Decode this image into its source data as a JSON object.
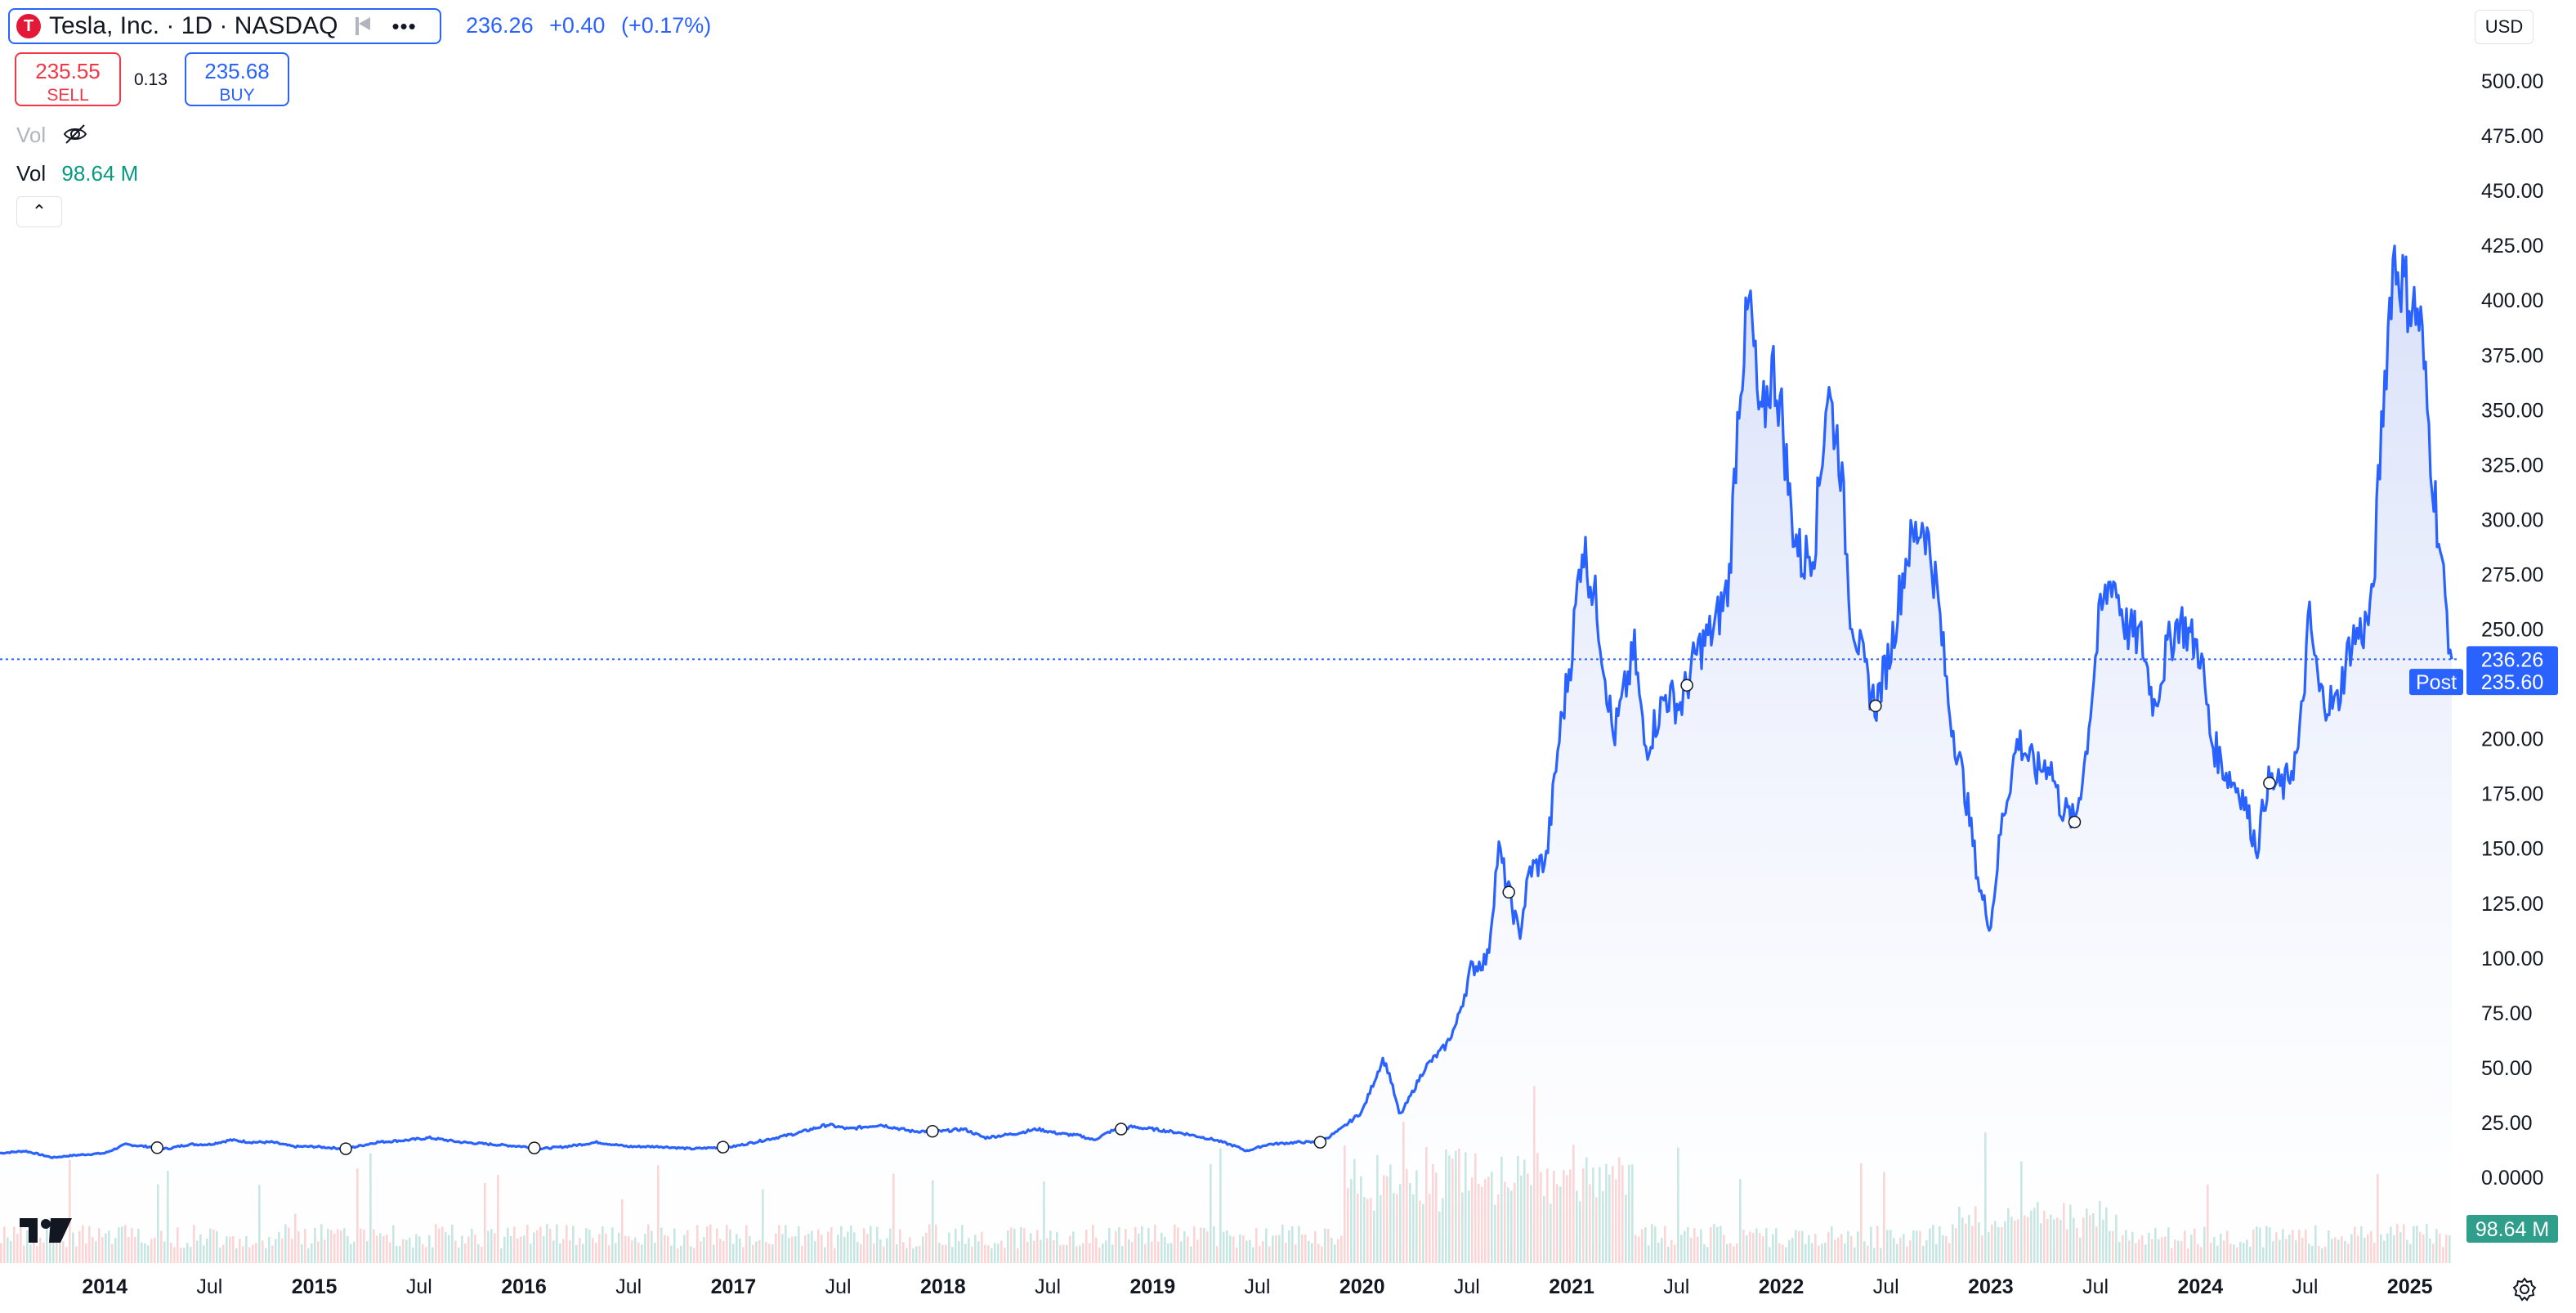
{
  "header": {
    "symbol_logo": "T",
    "symbol_title": "Tesla, Inc. · 1D · NASDAQ",
    "last_price": "236.26",
    "change": "+0.40",
    "change_pct": "(+0.17%)",
    "flag_icon": "flag-icon",
    "more_icon": "more-icon"
  },
  "trade": {
    "sell_price": "235.55",
    "sell_label": "SELL",
    "spread": "0.13",
    "buy_price": "235.68",
    "buy_label": "BUY"
  },
  "volume_legend": {
    "hidden_label": "Vol",
    "label": "Vol",
    "value": "98.64 M"
  },
  "currency": "USD",
  "price_badges": {
    "last": "236.26",
    "post": "235.60",
    "post_tag": "Post",
    "volume": "98.64 M"
  },
  "colors": {
    "line": "#2962ff",
    "area_top": "#dbe3fb",
    "vol_up": "#80c9bc",
    "vol_down": "#f5a0a0",
    "sell": "#f23645",
    "buy": "#2962ff",
    "vol_value": "#089981"
  },
  "chart_data": {
    "type": "area",
    "title": "Tesla, Inc. · 1D · NASDAQ",
    "xlabel": "",
    "ylabel": "",
    "ylim": [
      -20,
      525
    ],
    "y_ticks": [
      "500.00",
      "475.00",
      "450.00",
      "425.00",
      "400.00",
      "375.00",
      "350.00",
      "325.00",
      "300.00",
      "275.00",
      "250.00",
      "225.00",
      "200.00",
      "175.00",
      "150.00",
      "125.00",
      "100.00",
      "75.00",
      "50.00",
      "25.00",
      "0.0000"
    ],
    "x_ticks": [
      {
        "label": "2014",
        "t": 2014.0,
        "bold": true
      },
      {
        "label": "Jul",
        "t": 2014.5,
        "bold": false
      },
      {
        "label": "2015",
        "t": 2015.0,
        "bold": true
      },
      {
        "label": "Jul",
        "t": 2015.5,
        "bold": false
      },
      {
        "label": "2016",
        "t": 2016.0,
        "bold": true
      },
      {
        "label": "Jul",
        "t": 2016.5,
        "bold": false
      },
      {
        "label": "2017",
        "t": 2017.0,
        "bold": true
      },
      {
        "label": "Jul",
        "t": 2017.5,
        "bold": false
      },
      {
        "label": "2018",
        "t": 2018.0,
        "bold": true
      },
      {
        "label": "Jul",
        "t": 2018.5,
        "bold": false
      },
      {
        "label": "2019",
        "t": 2019.0,
        "bold": true
      },
      {
        "label": "Jul",
        "t": 2019.5,
        "bold": false
      },
      {
        "label": "2020",
        "t": 2020.0,
        "bold": true
      },
      {
        "label": "Jul",
        "t": 2020.5,
        "bold": false
      },
      {
        "label": "2021",
        "t": 2021.0,
        "bold": true
      },
      {
        "label": "Jul",
        "t": 2021.5,
        "bold": false
      },
      {
        "label": "2022",
        "t": 2022.0,
        "bold": true
      },
      {
        "label": "Jul",
        "t": 2022.5,
        "bold": false
      },
      {
        "label": "2023",
        "t": 2023.0,
        "bold": true
      },
      {
        "label": "Jul",
        "t": 2023.5,
        "bold": false
      },
      {
        "label": "2024",
        "t": 2024.0,
        "bold": true
      },
      {
        "label": "Jul",
        "t": 2024.5,
        "bold": false
      },
      {
        "label": "2025",
        "t": 2025.0,
        "bold": true
      }
    ],
    "series": [
      {
        "values": [
          [
            2013.5,
            11
          ],
          [
            2013.62,
            12
          ],
          [
            2013.75,
            9
          ],
          [
            2013.85,
            10
          ],
          [
            2014.0,
            11
          ],
          [
            2014.1,
            15
          ],
          [
            2014.2,
            14
          ],
          [
            2014.3,
            13
          ],
          [
            2014.4,
            15
          ],
          [
            2014.5,
            15
          ],
          [
            2014.6,
            17
          ],
          [
            2014.7,
            16
          ],
          [
            2014.8,
            16
          ],
          [
            2014.9,
            14
          ],
          [
            2015.0,
            14
          ],
          [
            2015.15,
            13
          ],
          [
            2015.3,
            16
          ],
          [
            2015.45,
            17
          ],
          [
            2015.55,
            18
          ],
          [
            2015.7,
            16
          ],
          [
            2015.85,
            15
          ],
          [
            2016.0,
            14
          ],
          [
            2016.08,
            13
          ],
          [
            2016.2,
            14
          ],
          [
            2016.35,
            16
          ],
          [
            2016.5,
            14
          ],
          [
            2016.65,
            14
          ],
          [
            2016.8,
            13
          ],
          [
            2017.0,
            14
          ],
          [
            2017.15,
            17
          ],
          [
            2017.3,
            20
          ],
          [
            2017.45,
            24
          ],
          [
            2017.55,
            22
          ],
          [
            2017.7,
            24
          ],
          [
            2017.85,
            21
          ],
          [
            2018.0,
            21
          ],
          [
            2018.1,
            22
          ],
          [
            2018.2,
            18
          ],
          [
            2018.35,
            20
          ],
          [
            2018.45,
            22
          ],
          [
            2018.55,
            20
          ],
          [
            2018.65,
            19
          ],
          [
            2018.72,
            17
          ],
          [
            2018.8,
            21
          ],
          [
            2018.9,
            23
          ],
          [
            2019.0,
            22
          ],
          [
            2019.15,
            20
          ],
          [
            2019.3,
            17
          ],
          [
            2019.4,
            14
          ],
          [
            2019.45,
            12
          ],
          [
            2019.55,
            15
          ],
          [
            2019.7,
            16
          ],
          [
            2019.8,
            16
          ],
          [
            2019.9,
            22
          ],
          [
            2020.0,
            30
          ],
          [
            2020.1,
            54
          ],
          [
            2020.13,
            47
          ],
          [
            2020.18,
            28
          ],
          [
            2020.22,
            35
          ],
          [
            2020.3,
            50
          ],
          [
            2020.4,
            60
          ],
          [
            2020.45,
            70
          ],
          [
            2020.52,
            95
          ],
          [
            2020.6,
            100
          ],
          [
            2020.65,
            150
          ],
          [
            2020.7,
            130
          ],
          [
            2020.75,
            110
          ],
          [
            2020.8,
            140
          ],
          [
            2020.88,
            145
          ],
          [
            2020.94,
            200
          ],
          [
            2021.0,
            240
          ],
          [
            2021.05,
            290
          ],
          [
            2021.12,
            260
          ],
          [
            2021.2,
            200
          ],
          [
            2021.3,
            240
          ],
          [
            2021.35,
            195
          ],
          [
            2021.45,
            220
          ],
          [
            2021.52,
            215
          ],
          [
            2021.6,
            240
          ],
          [
            2021.68,
            250
          ],
          [
            2021.75,
            270
          ],
          [
            2021.8,
            360
          ],
          [
            2021.85,
            400
          ],
          [
            2021.9,
            340
          ],
          [
            2021.96,
            370
          ],
          [
            2022.0,
            350
          ],
          [
            2022.05,
            300
          ],
          [
            2022.1,
            280
          ],
          [
            2022.16,
            290
          ],
          [
            2022.22,
            360
          ],
          [
            2022.28,
            330
          ],
          [
            2022.33,
            260
          ],
          [
            2022.4,
            230
          ],
          [
            2022.45,
            215
          ],
          [
            2022.52,
            240
          ],
          [
            2022.6,
            285
          ],
          [
            2022.68,
            300
          ],
          [
            2022.74,
            270
          ],
          [
            2022.8,
            215
          ],
          [
            2022.88,
            175
          ],
          [
            2022.95,
            130
          ],
          [
            2023.0,
            115
          ],
          [
            2023.05,
            160
          ],
          [
            2023.13,
            200
          ],
          [
            2023.22,
            185
          ],
          [
            2023.28,
            190
          ],
          [
            2023.33,
            170
          ],
          [
            2023.4,
            162
          ],
          [
            2023.45,
            190
          ],
          [
            2023.52,
            255
          ],
          [
            2023.58,
            275
          ],
          [
            2023.65,
            250
          ],
          [
            2023.72,
            245
          ],
          [
            2023.78,
            215
          ],
          [
            2023.84,
            240
          ],
          [
            2023.9,
            255
          ],
          [
            2023.96,
            245
          ],
          [
            2024.0,
            240
          ],
          [
            2024.05,
            200
          ],
          [
            2024.12,
            185
          ],
          [
            2024.2,
            175
          ],
          [
            2024.27,
            150
          ],
          [
            2024.32,
            180
          ],
          [
            2024.4,
            178
          ],
          [
            2024.47,
            195
          ],
          [
            2024.52,
            255
          ],
          [
            2024.57,
            220
          ],
          [
            2024.65,
            215
          ],
          [
            2024.72,
            245
          ],
          [
            2024.78,
            250
          ],
          [
            2024.82,
            260
          ],
          [
            2024.87,
            350
          ],
          [
            2024.92,
            420
          ],
          [
            2024.96,
            410
          ],
          [
            2025.0,
            400
          ],
          [
            2025.05,
            390
          ],
          [
            2025.1,
            330
          ],
          [
            2025.15,
            280
          ],
          [
            2025.2,
            236
          ]
        ]
      }
    ],
    "post_market_price": 235.6,
    "last_price": 236.26
  }
}
